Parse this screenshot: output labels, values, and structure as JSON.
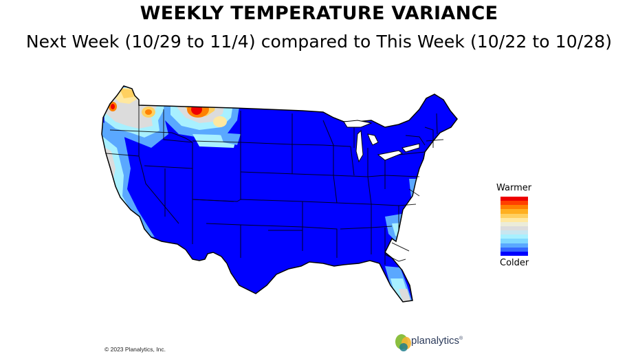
{
  "header": {
    "title": "WEEKLY TEMPERATURE VARIANCE",
    "subtitle": "Next Week (10/29 to 11/4) compared to This Week (10/22 to 10/28)"
  },
  "map": {
    "region": "United States",
    "dominant_color": "#0000ff",
    "boundary_color": "#000000"
  },
  "legend": {
    "top_label": "Warmer",
    "bottom_label": "Colder",
    "scale": [
      "#ee0000",
      "#ff4000",
      "#ff8000",
      "#ffb020",
      "#ffd060",
      "#ffe8a0",
      "#ececd8",
      "#dcdcdc",
      "#c8e6f0",
      "#a8f0ff",
      "#80d8ff",
      "#5aa8ff",
      "#3366ff",
      "#0000ff"
    ]
  },
  "footer": {
    "copyright": "© 2023 Planalytics, Inc.",
    "logo_text": "planalytics",
    "logo_tm": "®"
  },
  "colors": {
    "warm_red": "#ee0000",
    "warm_orange": "#ff8000",
    "warm_yellow": "#ffd060",
    "neutral_gray": "#d8d8d8",
    "cool_cyan": "#a8f0ff",
    "cool_light_blue": "#5aa8ff",
    "cold_blue": "#0000ff"
  }
}
